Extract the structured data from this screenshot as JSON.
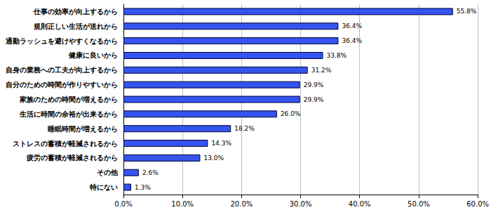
{
  "chart_data": {
    "type": "bar",
    "orientation": "horizontal",
    "categories": [
      "仕事の効率が向上するから",
      "規則正しい生活が送れから",
      "通勤ラッシュを避けやすくなるから",
      "健康に良いから",
      "自身の業務への工夫が向上するから",
      "自分のための時間が作りやすいから",
      "家族のための時間が増えるから",
      "生活に時間の余裕が出来るから",
      "睡眠時間が増えるから",
      "ストレスの蓄積が軽減されるから",
      "疲労の蓄積が軽減されるから",
      "その他",
      "特にない"
    ],
    "values": [
      55.8,
      36.4,
      36.4,
      33.8,
      31.2,
      29.9,
      29.9,
      26.0,
      18.2,
      14.3,
      13.0,
      2.6,
      1.3
    ],
    "value_labels": [
      "55.8%",
      "36.4%",
      "36.4%",
      "33.8%",
      "31.2%",
      "29.9%",
      "29.9%",
      "26.0%",
      "18.2%",
      "14.3%",
      "13.0%",
      "2.6%",
      "1.3%"
    ],
    "color": "#3355ee",
    "data_labels": true,
    "xlim": [
      0,
      60
    ],
    "xticks": [
      {
        "value": 0,
        "label": "0.0%"
      },
      {
        "value": 10,
        "label": "10.0%"
      },
      {
        "value": 20,
        "label": "20.0%"
      },
      {
        "value": 30,
        "label": "30.0%"
      },
      {
        "value": 40,
        "label": "40.0%"
      },
      {
        "value": 50,
        "label": "50.0%"
      },
      {
        "value": 60,
        "label": "60.0%"
      }
    ],
    "grid": true
  }
}
